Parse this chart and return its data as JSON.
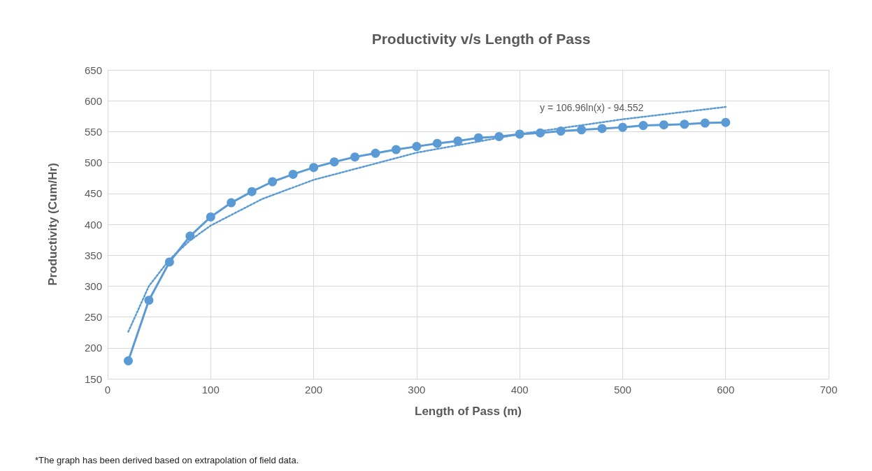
{
  "chart_data": {
    "type": "line",
    "title": "Productivity v/s Length of Pass",
    "xlabel": "Length of Pass (m)",
    "ylabel": "Productivity (Cum/Hr)",
    "x": [
      20,
      40,
      60,
      80,
      100,
      120,
      140,
      160,
      180,
      200,
      220,
      240,
      260,
      280,
      300,
      320,
      340,
      360,
      380,
      400,
      420,
      440,
      460,
      480,
      500,
      520,
      540,
      560,
      580,
      600
    ],
    "series": [
      {
        "color": "#5b9bd5",
        "values": [
          179,
          277,
          339,
          381,
          412,
          435,
          453,
          469,
          481,
          492,
          501,
          509,
          515,
          521,
          526,
          531,
          535,
          540,
          542,
          546,
          548,
          551,
          553,
          555,
          557,
          560,
          561,
          562,
          564,
          565
        ]
      },
      {
        "type": "line",
        "color": "#5b9bd5",
        "line_style": "dotted",
        "marker": "none",
        "x": [
          20,
          40,
          60,
          80,
          100,
          150,
          200,
          300,
          400,
          500,
          600
        ],
        "values": [
          226,
          300,
          343,
          374,
          398,
          441,
          472,
          516,
          546,
          570,
          590
        ]
      }
    ],
    "xlim": [
      0,
      700
    ],
    "xticks": [
      0,
      100,
      200,
      300,
      400,
      500,
      600,
      700
    ],
    "ylim": [
      150,
      650
    ],
    "yticks": [
      150,
      200,
      250,
      300,
      350,
      400,
      450,
      500,
      550,
      600,
      650
    ],
    "grid": true,
    "marker": "circle",
    "line_style": "solid",
    "annotations": [
      "y = 106.96ln(x) - 94.552",
      "*The graph has been derived based on extrapolation of field data."
    ]
  }
}
